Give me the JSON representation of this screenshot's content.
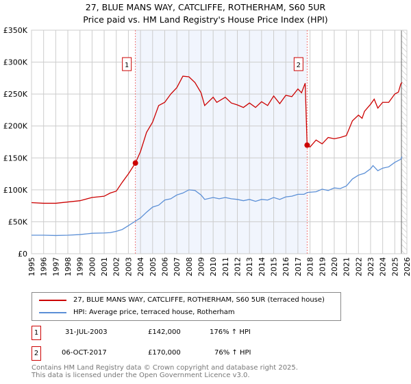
{
  "chart_data": {
    "type": "line",
    "title": "27, BLUE MANS WAY, CATCLIFFE, ROTHERHAM, S60 5UR",
    "subtitle": "Price paid vs. HM Land Registry's House Price Index (HPI)",
    "xlim": [
      1995,
      2026
    ],
    "ylim": [
      0,
      350000
    ],
    "yticks": [
      {
        "v": 0,
        "l": "£0"
      },
      {
        "v": 50000,
        "l": "£50K"
      },
      {
        "v": 100000,
        "l": "£100K"
      },
      {
        "v": 150000,
        "l": "£150K"
      },
      {
        "v": 200000,
        "l": "£200K"
      },
      {
        "v": 250000,
        "l": "£250K"
      },
      {
        "v": 300000,
        "l": "£300K"
      },
      {
        "v": 350000,
        "l": "£350K"
      }
    ],
    "xticks": [
      "1995",
      "1996",
      "1997",
      "1998",
      "1999",
      "2000",
      "2001",
      "2002",
      "2003",
      "2004",
      "2005",
      "2006",
      "2007",
      "2008",
      "2009",
      "2010",
      "2011",
      "2012",
      "2013",
      "2014",
      "2015",
      "2016",
      "2017",
      "2018",
      "2019",
      "2020",
      "2021",
      "2022",
      "2023",
      "2024",
      "2025",
      "2026"
    ],
    "grid": true,
    "shaded_range": [
      2003.58,
      2017.76
    ],
    "hatched_from": 2025.55,
    "series": [
      {
        "name": "27, BLUE MANS WAY, CATCLIFFE, ROTHERHAM, S60 5UR (terraced house)",
        "color": "#cc0000",
        "x": [
          1995,
          1996,
          1997,
          1998,
          1999,
          2000,
          2001,
          2001.5,
          2002,
          2002.5,
          2003,
          2003.58,
          2004,
          2004.5,
          2005,
          2005.5,
          2006,
          2006.5,
          2007,
          2007.5,
          2008,
          2008.5,
          2009,
          2009.3,
          2010,
          2010.3,
          2011,
          2011.5,
          2012,
          2012.5,
          2013,
          2013.5,
          2014,
          2014.5,
          2015,
          2015.5,
          2016,
          2016.5,
          2017,
          2017.3,
          2017.6,
          2017.76,
          2018,
          2018.5,
          2019,
          2019.5,
          2020,
          2020.5,
          2021,
          2021.5,
          2022,
          2022.3,
          2022.5,
          2023,
          2023.3,
          2023.6,
          2024,
          2024.5,
          2025,
          2025.3,
          2025.5,
          2025.6
        ],
        "y": [
          80000,
          79000,
          79000,
          81000,
          83000,
          88000,
          90000,
          95000,
          98000,
          112000,
          125000,
          142000,
          160000,
          190000,
          206000,
          232000,
          237000,
          250000,
          260000,
          278000,
          277000,
          268000,
          252000,
          232000,
          245000,
          237000,
          245000,
          236000,
          233000,
          229000,
          236000,
          229000,
          238000,
          232000,
          247000,
          235000,
          248000,
          246000,
          258000,
          252000,
          267000,
          170000,
          167000,
          178000,
          172000,
          182000,
          180000,
          182000,
          185000,
          208000,
          217000,
          212000,
          223000,
          234000,
          242000,
          228000,
          237000,
          237000,
          250000,
          253000,
          266000,
          268000
        ]
      },
      {
        "name": "HPI: Average price, terraced house, Rotherham",
        "color": "#5b8fd6",
        "x": [
          1995,
          1996,
          1997,
          1998,
          1999,
          2000,
          2001,
          2001.5,
          2002,
          2002.5,
          2003,
          2003.58,
          2004,
          2004.5,
          2005,
          2005.5,
          2006,
          2006.5,
          2007,
          2007.5,
          2008,
          2008.5,
          2009,
          2009.3,
          2010,
          2010.5,
          2011,
          2011.5,
          2012,
          2012.5,
          2013,
          2013.5,
          2014,
          2014.5,
          2015,
          2015.5,
          2016,
          2016.5,
          2017,
          2017.5,
          2017.8,
          2018.5,
          2019,
          2019.5,
          2020,
          2020.5,
          2021,
          2021.5,
          2022,
          2022.5,
          2023,
          2023.2,
          2023.6,
          2024,
          2024.5,
          2025,
          2025.5,
          2025.6
        ],
        "y": [
          29000,
          29000,
          28500,
          29000,
          30000,
          32000,
          32500,
          33000,
          35000,
          38000,
          44000,
          51000,
          56000,
          65000,
          73000,
          76000,
          84000,
          86000,
          92000,
          95000,
          100000,
          99000,
          92000,
          85000,
          88000,
          86000,
          88000,
          86000,
          85000,
          83000,
          85000,
          82000,
          85000,
          84000,
          88000,
          85000,
          89000,
          90000,
          93000,
          93000,
          96000,
          97000,
          101000,
          99000,
          103000,
          102000,
          106000,
          117000,
          123000,
          126000,
          133000,
          138000,
          130000,
          134000,
          136000,
          143000,
          148000,
          152000
        ]
      }
    ],
    "sales": [
      {
        "label": "1",
        "x": 2003.58,
        "price": 142000,
        "date": "31-JUL-2003",
        "price_text": "£142,000",
        "hpi_text": "176% ↑ HPI"
      },
      {
        "label": "2",
        "x": 2017.76,
        "price": 170000,
        "date": "06-OCT-2017",
        "price_text": "£170,000",
        "hpi_text": "76% ↑ HPI"
      }
    ]
  },
  "footer": {
    "line1": "Contains HM Land Registry data © Crown copyright and database right 2025.",
    "line2": "This data is licensed under the Open Government Licence v3.0."
  }
}
